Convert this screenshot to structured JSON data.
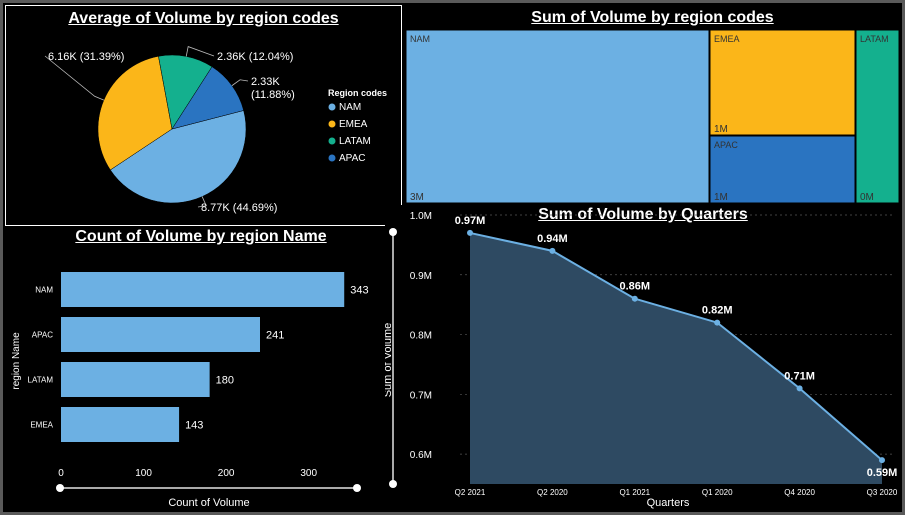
{
  "pie": {
    "title": "Average of Volume by region codes",
    "legend_title": "Region codes",
    "chart_data": {
      "type": "pie",
      "labels": [
        "NAM",
        "EMEA",
        "LATAM",
        "APAC"
      ],
      "values": [
        8.77,
        6.16,
        2.36,
        2.33
      ],
      "value_labels": [
        "8.77K (44.69%)",
        "6.16K (31.39%)",
        "2.36K (12.04%)",
        "2.33K (11.88%)"
      ],
      "percents": [
        44.69,
        31.39,
        12.04,
        11.88
      ],
      "colors": [
        "#6CB0E3",
        "#FBB619",
        "#14B08E",
        "#2A74C1"
      ],
      "legend_placement": "right"
    }
  },
  "treemap": {
    "title": "Sum of Volume by region codes",
    "chart_data": {
      "type": "treemap",
      "labels": [
        "NAM",
        "EMEA",
        "APAC",
        "LATAM"
      ],
      "value_labels": [
        "3M",
        "1M",
        "1M",
        "0M"
      ],
      "colors": [
        "#6CB0E3",
        "#FBB619",
        "#2A74C1",
        "#14B08E"
      ]
    }
  },
  "bar": {
    "title": "Count of Volume by region Name",
    "chart_data": {
      "type": "bar",
      "orientation": "horizontal",
      "categories": [
        "NAM",
        "APAC",
        "LATAM",
        "EMEA"
      ],
      "values": [
        343,
        241,
        180,
        143
      ],
      "xlabel": "Count of Volume",
      "ylabel": "region Name",
      "xlim": [
        0,
        350
      ],
      "xticks": [
        0,
        100,
        200,
        300
      ],
      "color": "#6CB0E3"
    }
  },
  "line": {
    "title": "Sum of Volume by Quarters",
    "chart_data": {
      "type": "area",
      "categories": [
        "Q2 2021",
        "Q2 2020",
        "Q1 2021",
        "Q1 2020",
        "Q4 2020",
        "Q3 2020"
      ],
      "values": [
        0.97,
        0.94,
        0.86,
        0.82,
        0.71,
        0.59
      ],
      "value_labels": [
        "0.97M",
        "0.94M",
        "0.86M",
        "0.82M",
        "0.71M",
        "0.59M"
      ],
      "xlabel": "Quarters",
      "ylabel": "Sum of Volume",
      "ylim": [
        0.55,
        1.0
      ],
      "yticks": [
        0.6,
        0.7,
        0.8,
        0.9,
        1.0
      ],
      "ytick_labels": [
        "0.6M",
        "0.7M",
        "0.8M",
        "0.9M",
        "1.0M"
      ],
      "grid": true,
      "color": "#6CB0E3"
    }
  }
}
